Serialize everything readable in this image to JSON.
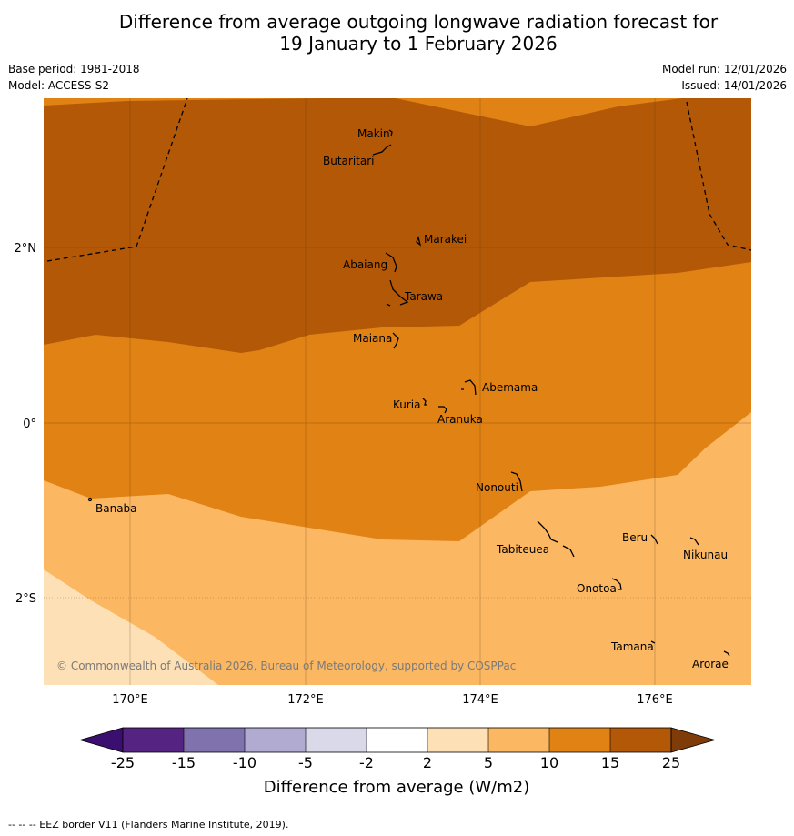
{
  "title": {
    "line1": "Difference from average outgoing longwave radiation forecast for",
    "line2": "19 January to 1 February 2026"
  },
  "meta": {
    "base_period": "Base period: 1981-2018",
    "model": "Model: ACCESS-S2",
    "model_run": "Model run: 12/01/2026",
    "issued": "Issued: 14/01/2026"
  },
  "map": {
    "lat_ticks": [
      "2°N",
      "0°",
      "2°S"
    ],
    "lon_ticks": [
      "170°E",
      "172°E",
      "174°E",
      "176°E"
    ],
    "places": {
      "makin": "Makin",
      "butaritari": "Butaritari",
      "marakei": "Marakei",
      "abaiang": "Abaiang",
      "tarawa": "Tarawa",
      "maiana": "Maiana",
      "abemama": "Abemama",
      "kuria": "Kuria",
      "aranuka": "Aranuka",
      "nonouti": "Nonouti",
      "banaba": "Banaba",
      "tabiteuea": "Tabiteuea",
      "beru": "Beru",
      "nikunau": "Nikunau",
      "onotoa": "Onotoa",
      "tamana": "Tamana",
      "arorae": "Arorae"
    },
    "copyright": "© Commonwealth of Australia 2026, Bureau of Meteorology, supported by COSPPac"
  },
  "colorbar": {
    "title": "Difference from average (W/m2)",
    "ticks": [
      "-25",
      "-15",
      "-10",
      "-5",
      "-2",
      "2",
      "5",
      "10",
      "15",
      "25"
    ],
    "colors": [
      "#3b0f6f",
      "#552483",
      "#7f72ad",
      "#b1abd2",
      "#d9d9ea",
      "#ffffff",
      "#fee0b6",
      "#fbb761",
      "#e08214",
      "#b35806",
      "#7f3b08"
    ]
  },
  "footer": "--  --  -- EEZ border V11 (Flanders Marine Institute, 2019)."
}
